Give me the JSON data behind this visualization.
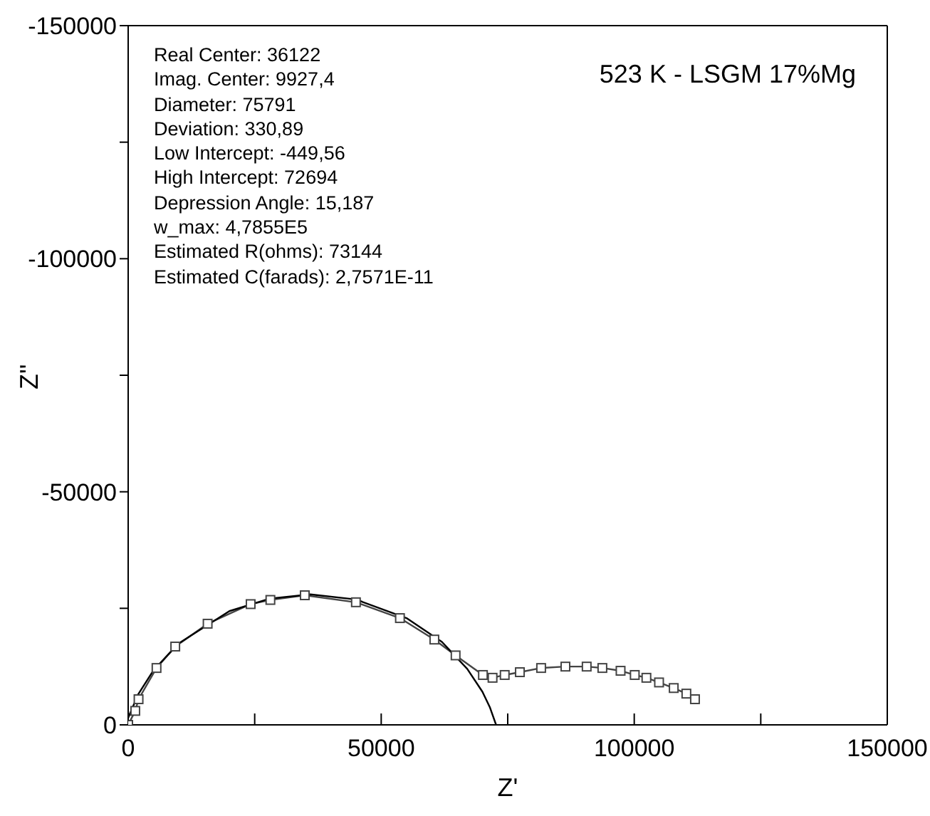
{
  "chart_data": {
    "type": "line",
    "title": "523 K - LSGM 17%Mg",
    "xlabel": "Z'",
    "ylabel": "Z''",
    "annotations": [
      "Real Center: 36122",
      "Imag. Center: 9927,4",
      "Diameter: 75791",
      "Deviation: 330,89",
      "Low Intercept: -449,56",
      "High Intercept: 72694",
      "Depression Angle: 15,187",
      "w_max: 4,7855E5",
      "Estimated R(ohms): 73144",
      "Estimated C(farads): 2,7571E-11"
    ],
    "series": [
      {
        "color": "#444444",
        "marker": "square",
        "x": [
          0,
          1400,
          2050,
          5600,
          9300,
          15700,
          24200,
          28100,
          34900,
          45000,
          53700,
          60500,
          64700,
          70100,
          72000,
          74400,
          77400,
          81600,
          86400,
          90600,
          93700,
          97300,
          100100,
          102400,
          104900,
          107800,
          110300,
          112000
        ],
        "values": [
          0,
          -3000,
          -5500,
          -12200,
          -16800,
          -21700,
          -25900,
          -26800,
          -27800,
          -26300,
          -22900,
          -18300,
          -14900,
          -10700,
          -10100,
          -10700,
          -11300,
          -12200,
          -12500,
          -12500,
          -12200,
          -11600,
          -10700,
          -10100,
          -9100,
          -7900,
          -6700,
          -5500
        ]
      },
      {
        "color": "#000000",
        "marker": "none",
        "x": [
          0,
          2000,
          5000,
          10000,
          20000,
          28000,
          36000,
          45000,
          55000,
          62000,
          67000,
          70000,
          71500,
          72700
        ],
        "values": [
          -1500,
          -6600,
          -11700,
          -17500,
          -24400,
          -27100,
          -28000,
          -26900,
          -22900,
          -17800,
          -12000,
          -7100,
          -3700,
          0
        ]
      }
    ],
    "xlim": [
      0,
      150000
    ],
    "xticks": [
      0,
      {
        "value": 25000,
        "label": null
      },
      50000,
      {
        "value": 75000,
        "label": null
      },
      100000,
      {
        "value": 125000,
        "label": null
      },
      150000
    ],
    "ylim": [
      0,
      -150000
    ],
    "yticks": [
      0,
      {
        "value": -25000,
        "label": null
      },
      -50000,
      {
        "value": -75000,
        "label": null
      },
      -100000,
      {
        "value": -125000,
        "label": null
      },
      -150000
    ],
    "grid": false,
    "legend": false,
    "line_style": "solid"
  }
}
